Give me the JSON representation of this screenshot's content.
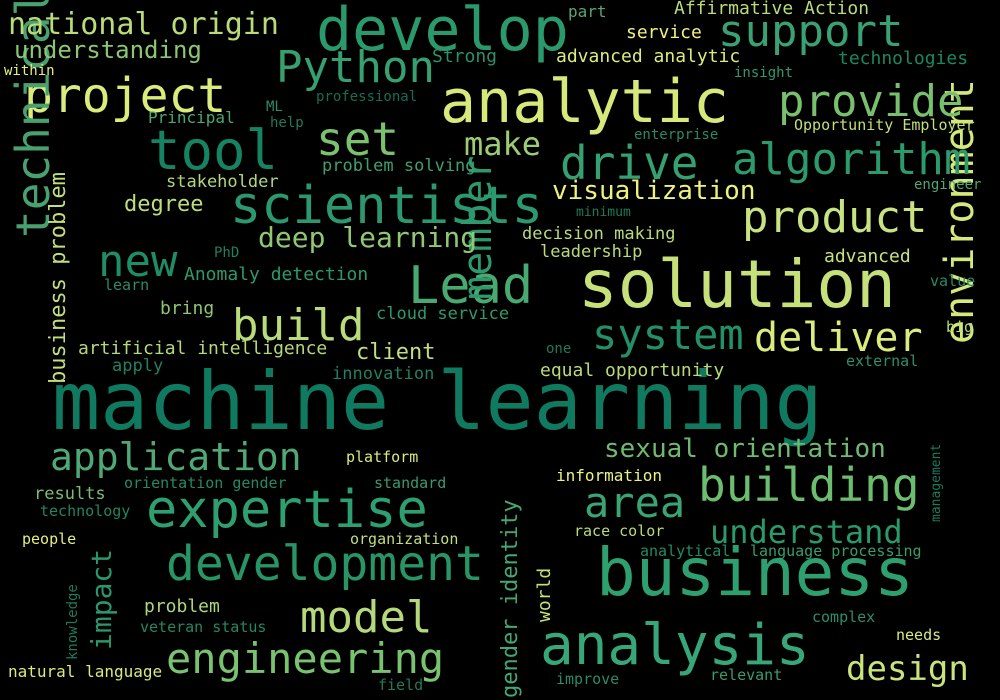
{
  "words": [
    {
      "id": "machine-learning",
      "text": "machine learning",
      "color": "#0f7a5f"
    },
    {
      "id": "solution",
      "text": "solution",
      "color": "#c6e07a"
    },
    {
      "id": "business",
      "text": "business",
      "color": "#2ea06f"
    },
    {
      "id": "analytic",
      "text": "analytic",
      "color": "#d6e97a"
    },
    {
      "id": "develop",
      "text": "develop",
      "color": "#2a9a6c"
    },
    {
      "id": "scientists",
      "text": "scientists",
      "color": "#2c9870"
    },
    {
      "id": "development",
      "text": "development",
      "color": "#279566"
    },
    {
      "id": "expertise",
      "text": "expertise",
      "color": "#2e9f70"
    },
    {
      "id": "analysis",
      "text": "analysis",
      "color": "#37a77a"
    },
    {
      "id": "tool",
      "text": "tool",
      "color": "#168362"
    },
    {
      "id": "application",
      "text": "application",
      "color": "#4fa876"
    },
    {
      "id": "project",
      "text": "project",
      "color": "#d9ec7c"
    },
    {
      "id": "support",
      "text": "support",
      "color": "#3aa174"
    },
    {
      "id": "product",
      "text": "product",
      "color": "#c9e382"
    },
    {
      "id": "lead",
      "text": "Lead",
      "color": "#48aa70"
    },
    {
      "id": "building",
      "text": "building",
      "color": "#6dbd6f"
    },
    {
      "id": "engineering",
      "text": "engineering",
      "color": "#79c270"
    },
    {
      "id": "technical",
      "text": "technical",
      "color": "#4aa170"
    },
    {
      "id": "environment",
      "text": "environment",
      "color": "#d4e97c"
    },
    {
      "id": "drive",
      "text": "drive",
      "color": "#35a071"
    },
    {
      "id": "algorithm",
      "text": "algorithm",
      "color": "#2b9a6c"
    },
    {
      "id": "provide",
      "text": "provide",
      "color": "#78c06e"
    },
    {
      "id": "python",
      "text": "Python",
      "color": "#36a070"
    },
    {
      "id": "system",
      "text": "system",
      "color": "#239068"
    },
    {
      "id": "build",
      "text": "build",
      "color": "#b9db7a"
    },
    {
      "id": "set",
      "text": "set",
      "color": "#7cc16f"
    },
    {
      "id": "new",
      "text": "new",
      "color": "#1f8d66"
    },
    {
      "id": "area",
      "text": "area",
      "color": "#3aa474"
    },
    {
      "id": "model",
      "text": "model",
      "color": "#b5d87a"
    },
    {
      "id": "deliver",
      "text": "deliver",
      "color": "#ddeb7d"
    },
    {
      "id": "member",
      "text": "member",
      "color": "#2c9a6c"
    },
    {
      "id": "understand",
      "text": "understand",
      "color": "#2b9a6a"
    },
    {
      "id": "design",
      "text": "design",
      "color": "#c9e37d"
    },
    {
      "id": "make",
      "text": "make",
      "color": "#9ccd74"
    },
    {
      "id": "national-origin",
      "text": "national origin",
      "color": "#b9db78"
    },
    {
      "id": "deep-learning",
      "text": "deep learning",
      "color": "#8fc873"
    },
    {
      "id": "sexual-orientation",
      "text": "sexual orientation",
      "color": "#6fba70"
    },
    {
      "id": "visualization",
      "text": "visualization",
      "color": "#eef27d"
    },
    {
      "id": "impact",
      "text": "impact",
      "color": "#2a986b"
    },
    {
      "id": "gender-identity",
      "text": "gender identity",
      "color": "#45a874"
    },
    {
      "id": "business-problem",
      "text": "business problem",
      "color": "#c3df7c"
    },
    {
      "id": "understanding",
      "text": "understanding",
      "color": "#8bc673"
    },
    {
      "id": "affirmative-action",
      "text": "Affirmative Action",
      "color": "#b9dc78"
    },
    {
      "id": "advanced-analytic",
      "text": "advanced analytic",
      "color": "#ddec7c"
    },
    {
      "id": "technologies",
      "text": "technologies",
      "color": "#1b8862"
    },
    {
      "id": "service",
      "text": "service",
      "color": "#f0f27e"
    },
    {
      "id": "part",
      "text": "part",
      "color": "#5aa670"
    },
    {
      "id": "strong",
      "text": "Strong",
      "color": "#2c9068"
    },
    {
      "id": "insight",
      "text": "insight",
      "color": "#2f9a6e"
    },
    {
      "id": "within",
      "text": "within",
      "color": "#e9f07d"
    },
    {
      "id": "professional",
      "text": "professional",
      "color": "#146e55"
    },
    {
      "id": "ml",
      "text": "ML",
      "color": "#2e8a66"
    },
    {
      "id": "help",
      "text": "help",
      "color": "#217a5c"
    },
    {
      "id": "principal",
      "text": "Principal",
      "color": "#4ea672"
    },
    {
      "id": "opportunity-employer",
      "text": "Opportunity Employer",
      "color": "#c2df78"
    },
    {
      "id": "enterprise",
      "text": "enterprise",
      "color": "#2a8a66"
    },
    {
      "id": "problem-solving",
      "text": "problem solving",
      "color": "#3e9f72"
    },
    {
      "id": "stakeholder",
      "text": "stakeholder",
      "color": "#b4d77a"
    },
    {
      "id": "engineer",
      "text": "engineer",
      "color": "#50a774"
    },
    {
      "id": "degree",
      "text": "degree",
      "color": "#bedd7b"
    },
    {
      "id": "minimum",
      "text": "minimum",
      "color": "#1e7a5c"
    },
    {
      "id": "decision-making",
      "text": "decision making",
      "color": "#b9db7a"
    },
    {
      "id": "leadership",
      "text": "leadership",
      "color": "#b9db7a"
    },
    {
      "id": "phd",
      "text": "PhD",
      "color": "#237e60"
    },
    {
      "id": "advanced",
      "text": "advanced",
      "color": "#c8e27c"
    },
    {
      "id": "anomaly-detection",
      "text": "Anomaly detection",
      "color": "#2c9a6c"
    },
    {
      "id": "learn",
      "text": "learn",
      "color": "#2b8c66"
    },
    {
      "id": "value",
      "text": "value",
      "color": "#2a8a66"
    },
    {
      "id": "bring",
      "text": "bring",
      "color": "#8dc674"
    },
    {
      "id": "cloud-service",
      "text": "cloud service",
      "color": "#2f9a6c"
    },
    {
      "id": "big",
      "text": "big",
      "color": "#b8da7a"
    },
    {
      "id": "artificial-intelligence",
      "text": "artificial intelligence",
      "color": "#b4d87a"
    },
    {
      "id": "client",
      "text": "client",
      "color": "#c2df7b"
    },
    {
      "id": "one",
      "text": "one",
      "color": "#1f7a5c"
    },
    {
      "id": "apply",
      "text": "apply",
      "color": "#218062"
    },
    {
      "id": "innovation",
      "text": "innovation",
      "color": "#237e62"
    },
    {
      "id": "equal-opportunity",
      "text": "equal opportunity",
      "color": "#b8da78"
    },
    {
      "id": "external",
      "text": "external",
      "color": "#2d9069"
    },
    {
      "id": "platform",
      "text": "platform",
      "color": "#dcea7c"
    },
    {
      "id": "information",
      "text": "information",
      "color": "#eef27e"
    },
    {
      "id": "results",
      "text": "results",
      "color": "#7dbd70"
    },
    {
      "id": "orientation-gender",
      "text": "orientation gender",
      "color": "#248a66"
    },
    {
      "id": "standard",
      "text": "standard",
      "color": "#3a9a6e"
    },
    {
      "id": "technology",
      "text": "technology",
      "color": "#1f8563"
    },
    {
      "id": "management",
      "text": "management",
      "color": "#1c7a5c"
    },
    {
      "id": "organization",
      "text": "organization",
      "color": "#c2df7b"
    },
    {
      "id": "race-color",
      "text": "race color",
      "color": "#b9db7a"
    },
    {
      "id": "people",
      "text": "people",
      "color": "#e6ef7d"
    },
    {
      "id": "analytical",
      "text": "analytical",
      "color": "#248a66"
    },
    {
      "id": "language-processing",
      "text": "language processing",
      "color": "#3a9c6e"
    },
    {
      "id": "knowledge",
      "text": "knowledge",
      "color": "#1d7a5c"
    },
    {
      "id": "world",
      "text": "world",
      "color": "#c6e07a"
    },
    {
      "id": "problem",
      "text": "problem",
      "color": "#aed67a"
    },
    {
      "id": "veteran-status",
      "text": "veteran status",
      "color": "#248862"
    },
    {
      "id": "complex",
      "text": "complex",
      "color": "#2d8e68"
    },
    {
      "id": "needs",
      "text": "needs",
      "color": "#d9ea7c"
    },
    {
      "id": "natural-language",
      "text": "natural language",
      "color": "#d9ea7c"
    },
    {
      "id": "field",
      "text": "field",
      "color": "#1f7a5c"
    },
    {
      "id": "improve",
      "text": "improve",
      "color": "#2a8a66"
    },
    {
      "id": "relevant",
      "text": "relevant",
      "color": "#3a9c6e"
    }
  ]
}
